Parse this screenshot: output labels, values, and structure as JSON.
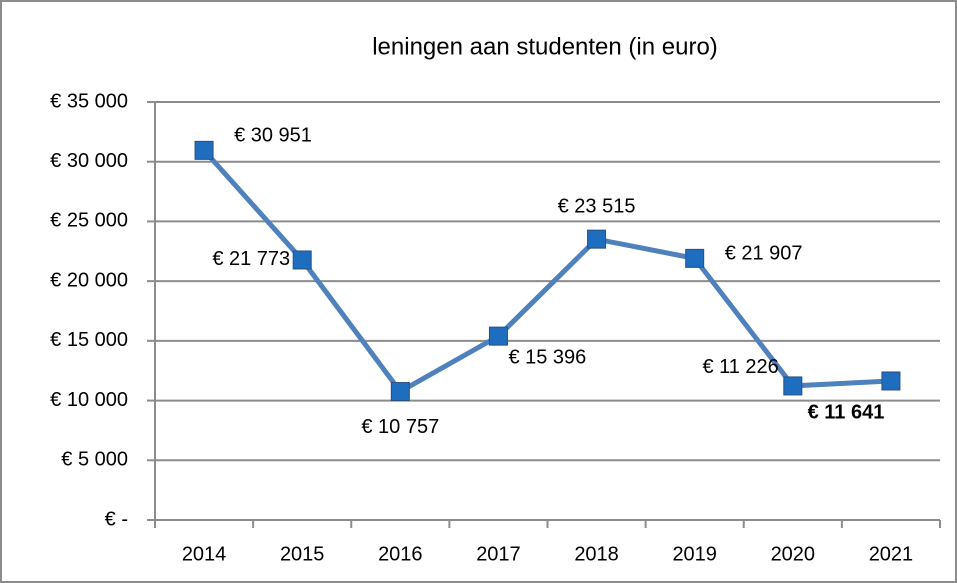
{
  "chart_data": {
    "type": "line",
    "title": "leningen aan studenten (in euro)",
    "categories": [
      "2014",
      "2015",
      "2016",
      "2017",
      "2018",
      "2019",
      "2020",
      "2021"
    ],
    "series": [
      {
        "name": "leningen",
        "color": "#4f81bd",
        "values": [
          30951,
          21773,
          10757,
          15396,
          23515,
          21907,
          11226,
          11641
        ],
        "value_labels": [
          "€ 30 951",
          "€ 21 773",
          "€ 10 757",
          "€ 15 396",
          "€ 23 515",
          "€ 21 907",
          "€ 11 226",
          "€ 11 641"
        ]
      }
    ],
    "ylim": [
      0,
      35000
    ],
    "yticks": [
      {
        "value": 0,
        "label": "€ -"
      },
      {
        "value": 5000,
        "label": "€ 5 000"
      },
      {
        "value": 10000,
        "label": "€ 10 000"
      },
      {
        "value": 15000,
        "label": "€ 15 000"
      },
      {
        "value": 20000,
        "label": "€ 20 000"
      },
      {
        "value": 25000,
        "label": "€ 25 000"
      },
      {
        "value": 30000,
        "label": "€ 30 000"
      },
      {
        "value": 35000,
        "label": "€ 35 000"
      }
    ],
    "grid": true
  }
}
